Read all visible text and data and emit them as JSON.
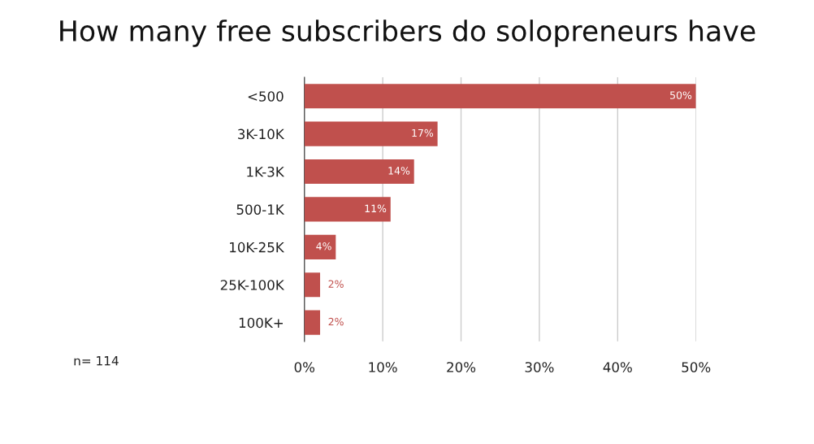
{
  "chart_data": {
    "type": "bar",
    "orientation": "horizontal",
    "title": "How many free subscribers do solopreneurs have",
    "categories": [
      "<500",
      "3K-10K",
      "1K-3K",
      "500-1K",
      "10K-25K",
      "25K-100K",
      "100K+"
    ],
    "values": [
      50,
      17,
      14,
      11,
      4,
      2,
      2
    ],
    "value_labels": [
      "50%",
      "17%",
      "14%",
      "11%",
      "4%",
      "2%",
      "2%"
    ],
    "color": "#c0504d",
    "xlim": [
      0,
      50
    ],
    "xticks": [
      {
        "value": 0,
        "label": "0%"
      },
      {
        "value": 10,
        "label": "10%"
      },
      {
        "value": 20,
        "label": "20%"
      },
      {
        "value": 30,
        "label": "30%"
      },
      {
        "value": 40,
        "label": "40%"
      },
      {
        "value": 50,
        "label": "50%"
      }
    ],
    "grid": "x",
    "annotations": [
      "n= 114"
    ]
  }
}
